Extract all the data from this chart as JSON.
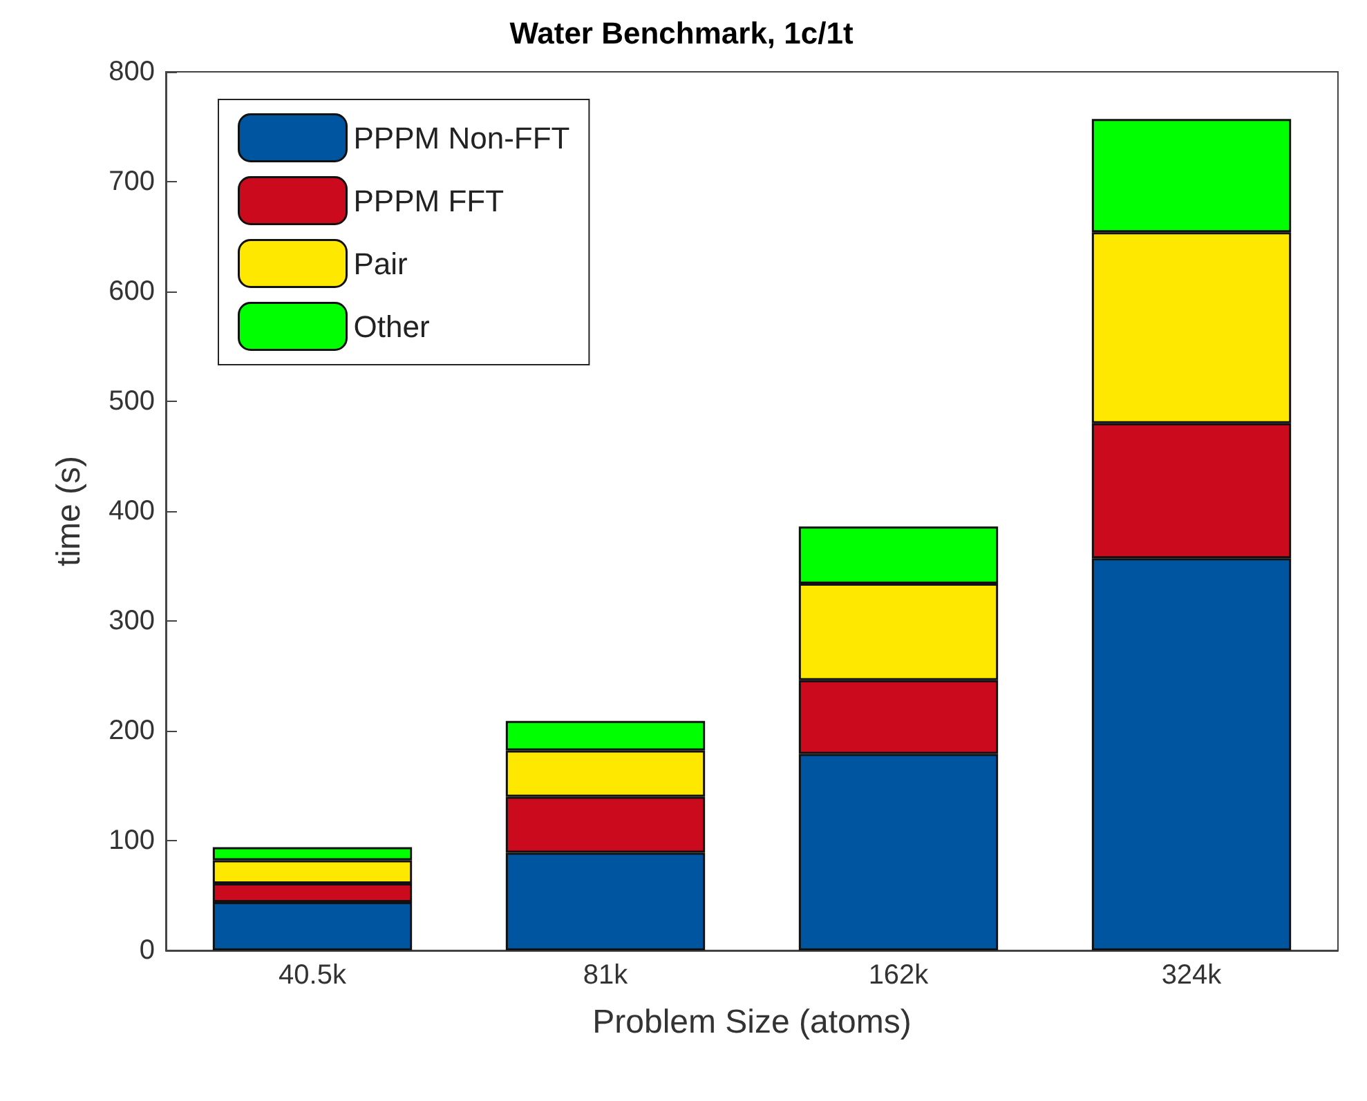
{
  "chart_data": {
    "type": "bar",
    "title": "Water Benchmark, 1c/1t",
    "xlabel": "Problem Size (atoms)",
    "ylabel": "time (s)",
    "categories": [
      "40.5k",
      "81k",
      "162k",
      "324k"
    ],
    "stacked": true,
    "series": [
      {
        "name": "PPPM Non-FFT",
        "color": "#0055a0",
        "values": [
          44,
          89,
          179,
          357
        ]
      },
      {
        "name": "PPPM FFT",
        "color": "#cc0a1e",
        "values": [
          17,
          51,
          67,
          123
        ]
      },
      {
        "name": "Pair",
        "color": "#ffe800",
        "values": [
          21,
          42,
          88,
          174
        ]
      },
      {
        "name": "Other",
        "color": "#00ff00",
        "values": [
          12,
          27,
          52,
          103
        ]
      }
    ],
    "ylim": [
      0,
      800
    ],
    "yticks": [
      0,
      100,
      200,
      300,
      400,
      500,
      600,
      700,
      800
    ],
    "grid": false,
    "legend": "top left"
  }
}
